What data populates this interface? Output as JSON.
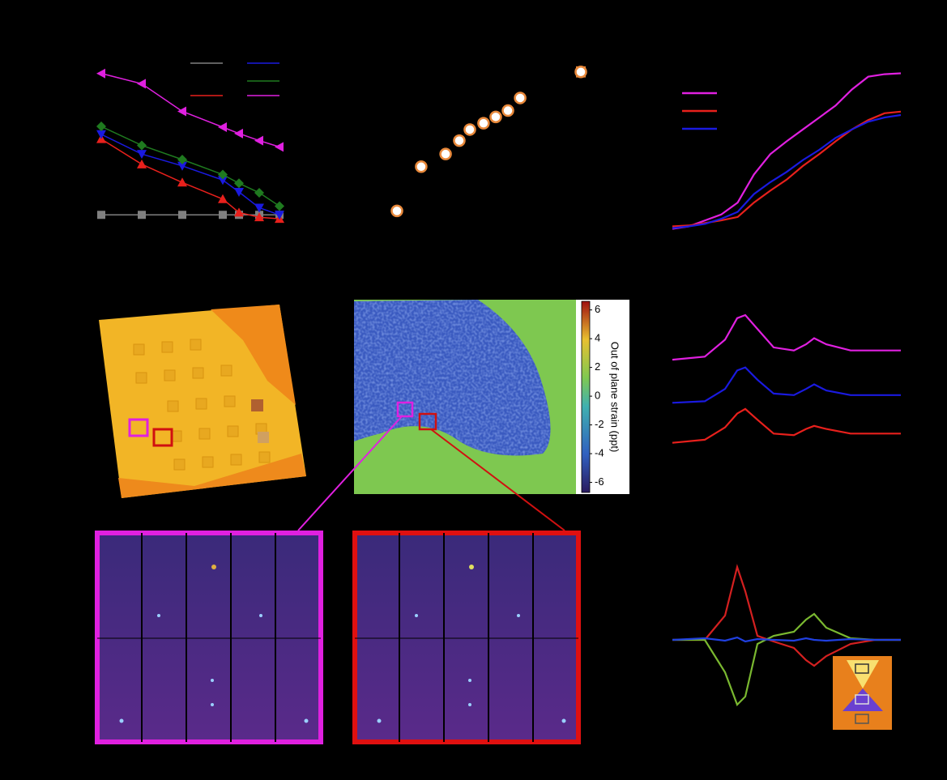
{
  "chart_data": [
    {
      "type": "line",
      "xlim": [
        0.8,
        5.7
      ],
      "ylim": [
        0,
        200
      ],
      "series": [
        {
          "color": "#808080",
          "marker": "square",
          "x": [
            1,
            2,
            3,
            4,
            4.4,
            4.9,
            5.4
          ],
          "values": [
            10,
            10,
            10,
            10,
            10,
            10,
            10
          ]
        },
        {
          "color": "#e8201c",
          "marker": "triangle-up",
          "x": [
            1,
            2,
            3,
            4,
            4.4,
            4.9,
            5.4
          ],
          "values": [
            106,
            74,
            51,
            30,
            13,
            7,
            5
          ]
        },
        {
          "color": "#1a1ae0",
          "marker": "triangle-down",
          "x": [
            1,
            2,
            3,
            4,
            4.4,
            4.9,
            5.4
          ],
          "values": [
            112,
            87,
            72,
            54,
            39,
            19,
            10
          ]
        },
        {
          "color": "#1f7a1f",
          "marker": "diamond",
          "x": [
            1,
            2,
            3,
            4,
            4.4,
            4.9,
            5.4
          ],
          "values": [
            122,
            98,
            80,
            61,
            50,
            38,
            21
          ]
        },
        {
          "color": "#e020e0",
          "marker": "triangle-left",
          "x": [
            1,
            2,
            3,
            4,
            4.4,
            4.9,
            5.4
          ],
          "values": [
            189,
            176,
            141,
            121,
            113,
            104,
            96
          ]
        }
      ]
    },
    {
      "type": "scatter",
      "xlim": [
        0,
        10
      ],
      "ylim": [
        0,
        200
      ],
      "color": "#e8883a",
      "x": [
        0.77,
        1.92,
        3.08,
        3.73,
        4.23,
        4.88,
        5.46,
        6.04,
        6.62,
        9.5
      ],
      "values": [
        15,
        71,
        87,
        104,
        118,
        126,
        134,
        142,
        158,
        191
      ],
      "errors": [
        3,
        3,
        3,
        3,
        3,
        3,
        3,
        3,
        3,
        6
      ]
    },
    {
      "type": "line",
      "xlim": [
        0,
        14
      ],
      "ylim": [
        0,
        200
      ],
      "series": [
        {
          "color": "#e020e0",
          "x": [
            0,
            1,
            2,
            3,
            4,
            5,
            6,
            7,
            8,
            9,
            10,
            11,
            12,
            13,
            14
          ],
          "values": [
            7,
            10,
            17,
            24,
            38,
            71,
            95,
            110,
            124,
            138,
            152,
            171,
            186,
            189,
            190
          ]
        },
        {
          "color": "#e8201c",
          "x": [
            0,
            1,
            2,
            3,
            4,
            5,
            6,
            7,
            8,
            9,
            10,
            11,
            12,
            13,
            14
          ],
          "values": [
            10,
            11,
            14,
            17,
            21,
            38,
            52,
            65,
            81,
            95,
            110,
            124,
            135,
            143,
            145
          ]
        },
        {
          "color": "#1a1ae0",
          "x": [
            0,
            1,
            2,
            3,
            4,
            5,
            6,
            7,
            8,
            9,
            10,
            11,
            12,
            13,
            14
          ],
          "values": [
            8,
            10,
            13,
            19,
            27,
            48,
            62,
            74,
            88,
            100,
            114,
            124,
            133,
            138,
            141
          ]
        }
      ]
    },
    {
      "type": "line",
      "xlim": [
        0,
        14.1
      ],
      "ylim": [
        0,
        100
      ],
      "series": [
        {
          "color": "#e020e0",
          "x": [
            0,
            2,
            3.25,
            4,
            4.5,
            5.25,
            6.25,
            7.5,
            8.25,
            8.75,
            9.5,
            11,
            12.5,
            14.1
          ],
          "values": [
            61,
            63,
            74,
            88,
            90,
            81,
            69,
            67,
            71,
            75,
            71,
            67,
            67,
            67
          ]
        },
        {
          "color": "#1a1ae0",
          "x": [
            0,
            2,
            3.25,
            4,
            4.5,
            5.25,
            6.25,
            7.5,
            8.25,
            8.75,
            9.5,
            11,
            12.5,
            14.1
          ],
          "values": [
            33,
            34,
            42,
            54,
            56,
            48,
            39,
            38,
            42,
            45,
            41,
            38,
            38,
            38
          ]
        },
        {
          "color": "#e8201c",
          "x": [
            0,
            2,
            3.25,
            4,
            4.5,
            5.25,
            6.25,
            7.5,
            8.25,
            8.75,
            9.5,
            11,
            12.5,
            14.1
          ],
          "values": [
            7,
            9,
            17,
            26,
            29,
            22,
            13,
            12,
            16,
            18,
            16,
            13,
            13,
            13
          ]
        }
      ]
    },
    {
      "type": "line",
      "xlim": [
        0,
        14.1
      ],
      "ylim": [
        -100,
        100
      ],
      "series": [
        {
          "color": "#d42020",
          "x": [
            0,
            2,
            3.25,
            4,
            4.5,
            5.25,
            6.25,
            7.5,
            8.25,
            8.75,
            9.5,
            11,
            12.5,
            14.1
          ],
          "values": [
            0,
            0,
            30,
            90,
            60,
            5,
            -2,
            -10,
            -25,
            -32,
            -20,
            -5,
            0,
            0
          ]
        },
        {
          "color": "#7ab830",
          "x": [
            0,
            2,
            3.25,
            4,
            4.5,
            5.25,
            6.25,
            7.5,
            8.25,
            8.75,
            9.5,
            11,
            12.5,
            14.1
          ],
          "values": [
            0,
            0,
            -40,
            -80,
            -70,
            -5,
            5,
            10,
            25,
            32,
            15,
            2,
            0,
            0
          ]
        },
        {
          "color": "#2040e0",
          "x": [
            0,
            2,
            3.25,
            4,
            4.5,
            5.25,
            6.25,
            7.5,
            8.25,
            8.75,
            9.5,
            11,
            12.5,
            14.1
          ],
          "values": [
            0,
            2,
            -1,
            3,
            -2,
            1,
            0,
            -1,
            2,
            0,
            -1,
            1,
            0,
            0
          ]
        }
      ]
    },
    {
      "type": "colorbar",
      "label": "Out of plane strain (ppt)",
      "ylim": [
        -6.7,
        6.6
      ],
      "yticks": [
        6,
        4,
        2,
        0,
        -2,
        -4,
        -6
      ]
    }
  ]
}
